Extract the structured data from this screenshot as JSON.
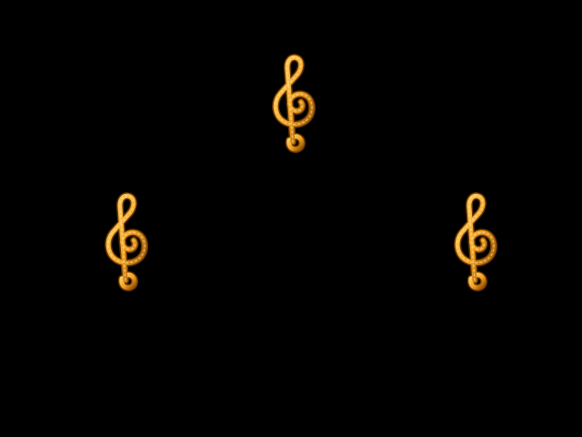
{
  "scene": {
    "background_color": "#000000",
    "items": [
      {
        "name": "treble-clef-icon",
        "color_light": "#ffd56a",
        "color_mid": "#f0a020",
        "color_dark": "#8a4b00"
      },
      {
        "name": "treble-clef-icon",
        "color_light": "#ffd56a",
        "color_mid": "#f0a020",
        "color_dark": "#8a4b00"
      },
      {
        "name": "treble-clef-icon",
        "color_light": "#ffd56a",
        "color_mid": "#f0a020",
        "color_dark": "#8a4b00"
      }
    ]
  }
}
